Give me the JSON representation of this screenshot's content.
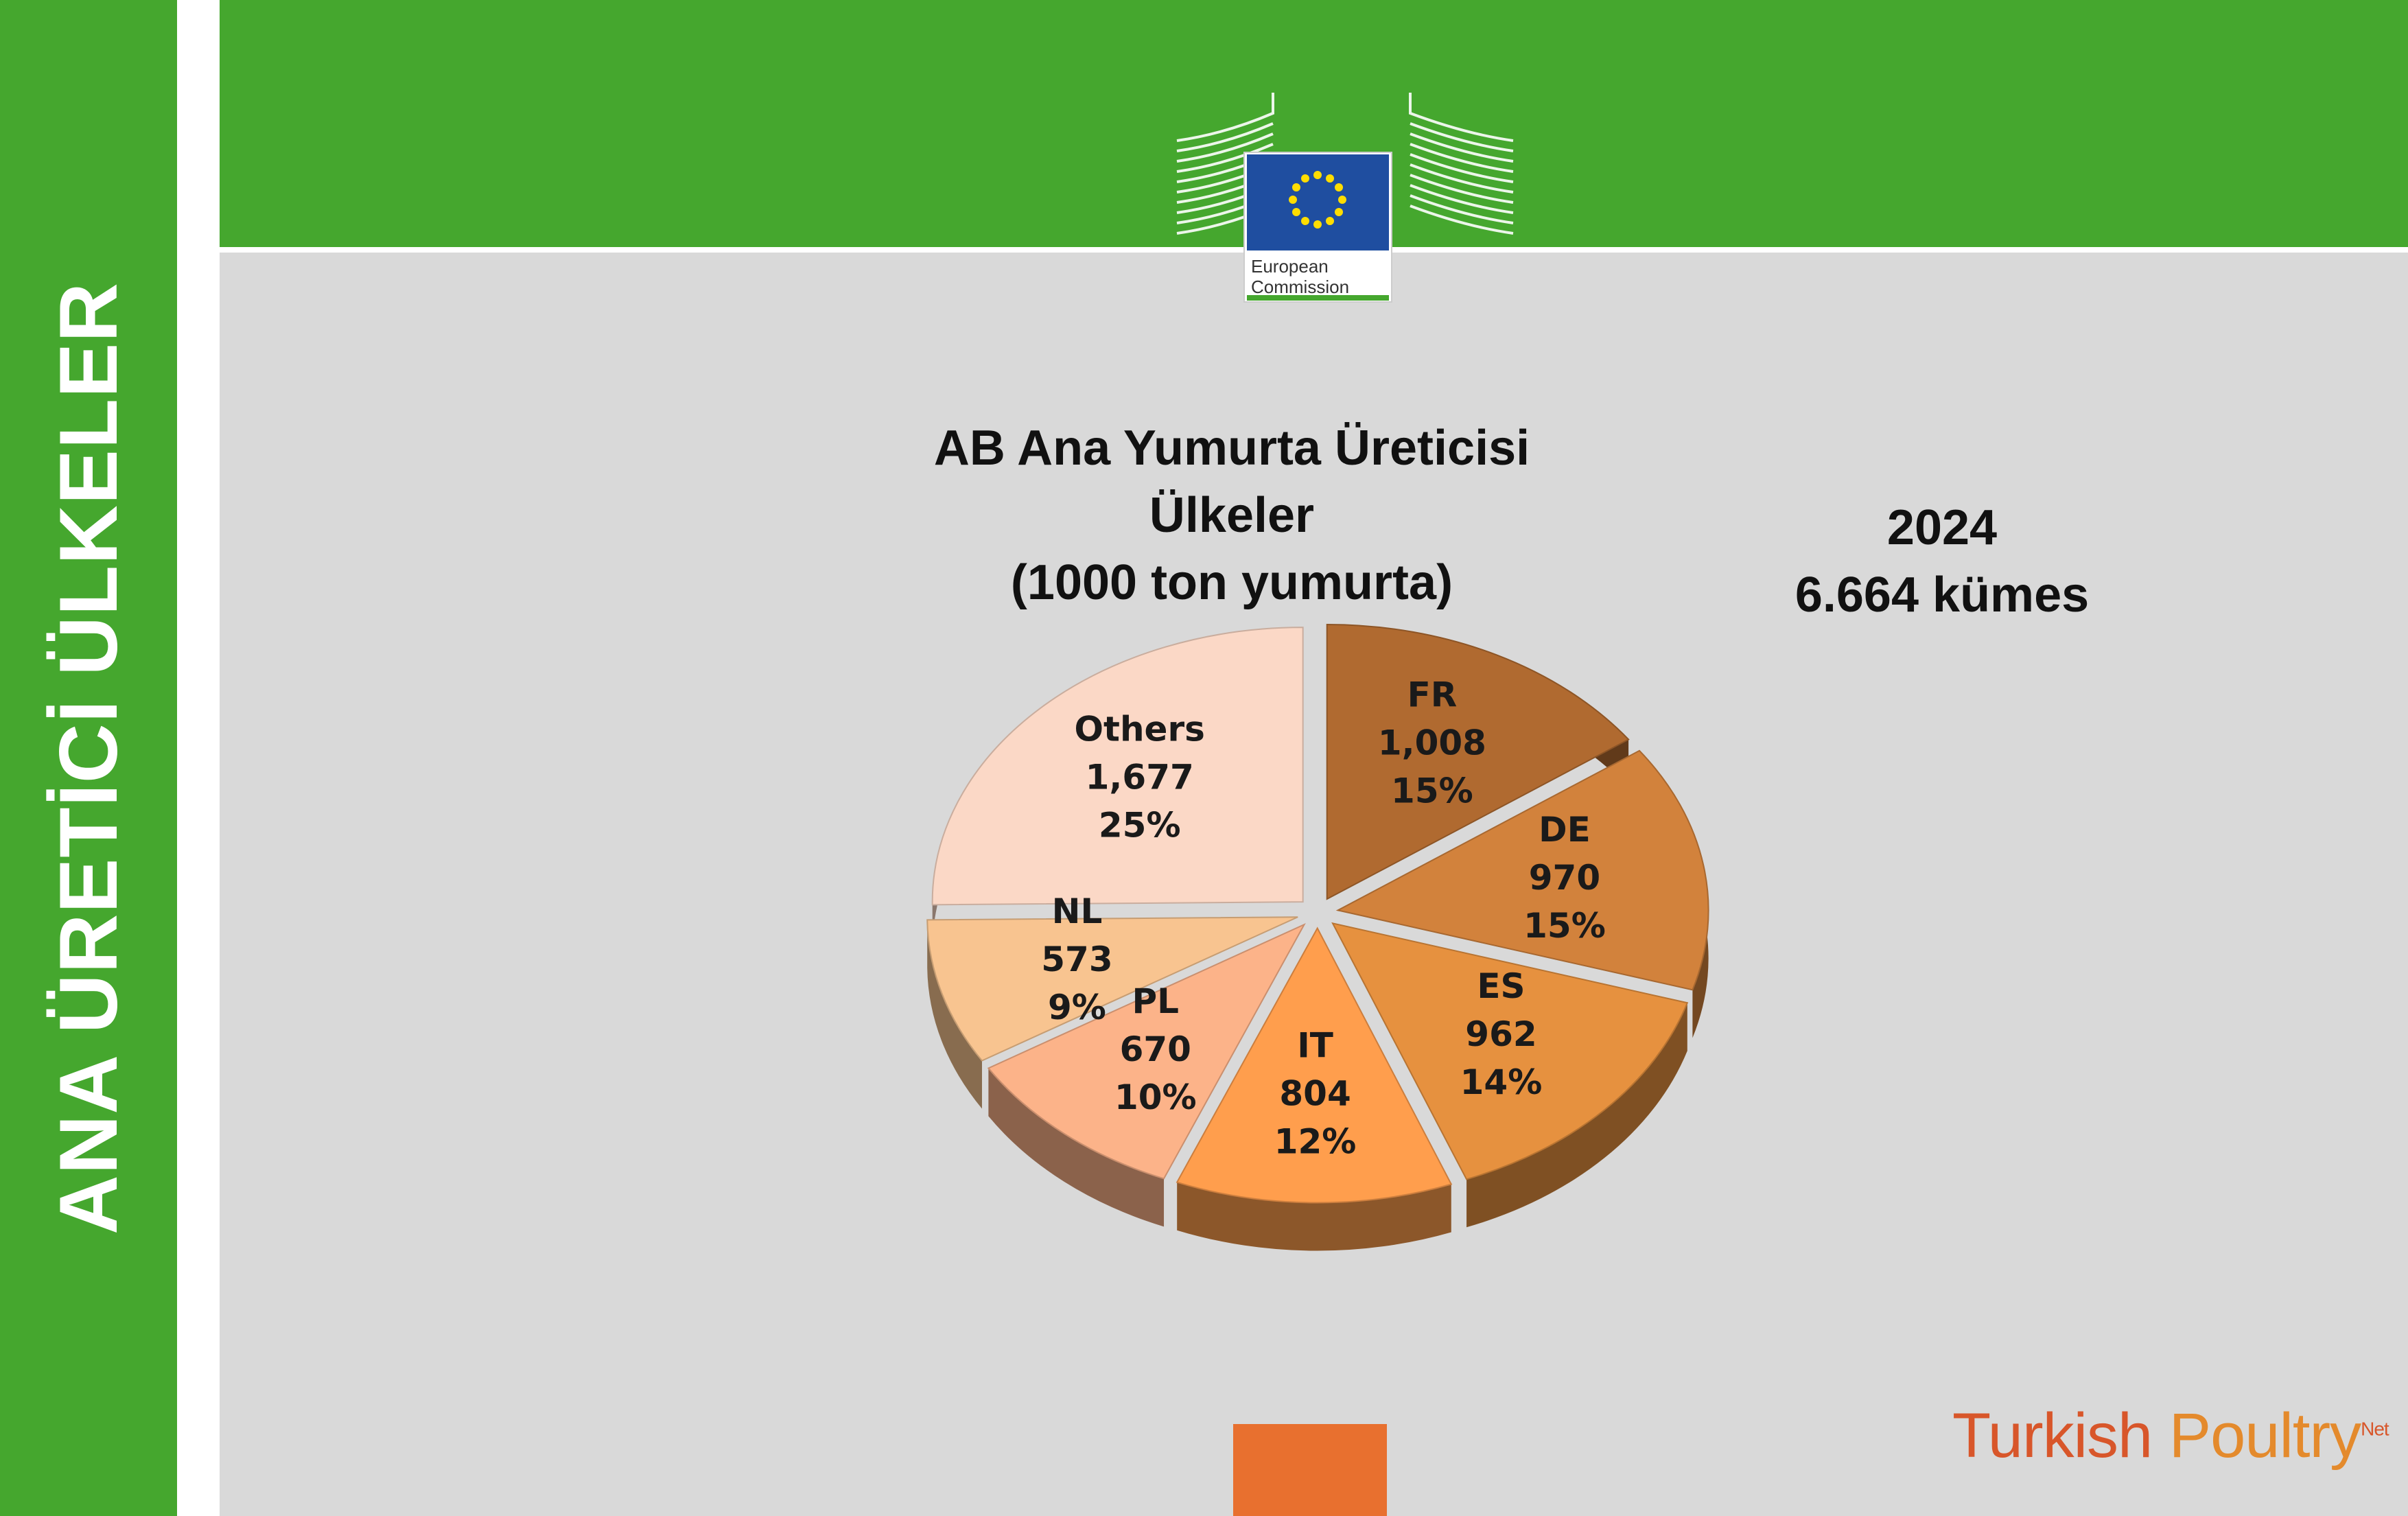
{
  "sidebar": {
    "title": "ANA ÜRETİCİ ÜLKELER"
  },
  "header": {
    "logo_text_1": "European",
    "logo_text_2": "Commission"
  },
  "chart_info": {
    "title_line1": "AB Ana Yumurta Üreticisi",
    "title_line2": "Ülkeler",
    "title_line3": "(1000 ton yumurta)",
    "year": "2024",
    "coops": "6.664 kümes"
  },
  "chart_data": {
    "type": "pie",
    "title": "AB Ana Yumurta Üreticisi Ülkeler (1000 ton yumurta)",
    "slices": [
      {
        "label": "FR",
        "value": 1008,
        "value_label": "1,008",
        "percent": "15%",
        "color": "#b06a30"
      },
      {
        "label": "DE",
        "value": 970,
        "value_label": "970",
        "percent": "15%",
        "color": "#d2823c"
      },
      {
        "label": "ES",
        "value": 962,
        "value_label": "962",
        "percent": "14%",
        "color": "#e6913f"
      },
      {
        "label": "IT",
        "value": 804,
        "value_label": "804",
        "percent": "12%",
        "color": "#ff9e4d"
      },
      {
        "label": "PL",
        "value": 670,
        "value_label": "670",
        "percent": "10%",
        "color": "#fcb389"
      },
      {
        "label": "NL",
        "value": 573,
        "value_label": "573",
        "percent": "9%",
        "color": "#f8c490"
      },
      {
        "label": "Others",
        "value": 1677,
        "value_label": "1,677",
        "percent": "25%",
        "color": "#fbd8c6"
      }
    ]
  },
  "brand": {
    "part1": "Turkish ",
    "part2": "Poultry",
    "suffix": "Net"
  }
}
